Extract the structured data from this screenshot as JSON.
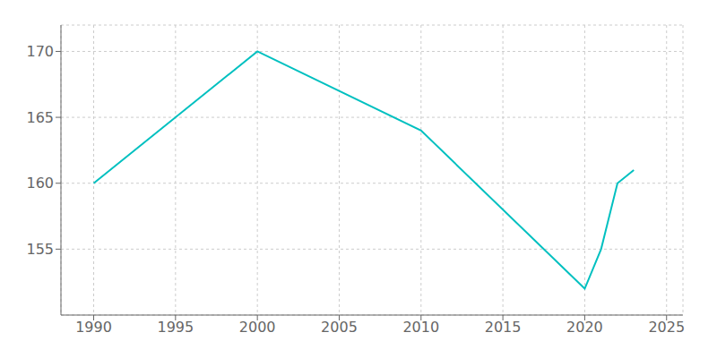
{
  "chart_data": {
    "type": "line",
    "x": [
      1990,
      2000,
      2010,
      2020,
      2021,
      2022,
      2023
    ],
    "values": [
      160,
      170,
      164,
      152,
      155,
      160,
      161
    ],
    "color": "#00c0c0",
    "xlim": [
      1988,
      2026
    ],
    "ylim": [
      150,
      172
    ],
    "xticks": [
      1990,
      1995,
      2000,
      2005,
      2010,
      2015,
      2020,
      2025
    ],
    "yticks": [
      155,
      160,
      165,
      170
    ],
    "grid": true
  }
}
